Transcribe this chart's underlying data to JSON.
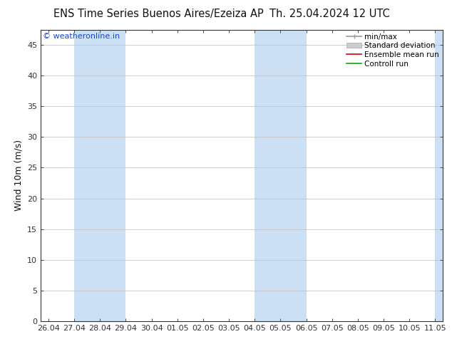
{
  "title_left": "ENS Time Series Buenos Aires/Ezeiza AP",
  "title_right": "Th. 25.04.2024 12 UTC",
  "ylabel": "Wind 10m (m/s)",
  "ylim": [
    0,
    47.5
  ],
  "yticks": [
    0,
    5,
    10,
    15,
    20,
    25,
    30,
    35,
    40,
    45
  ],
  "copyright_text": "© weatheronline.in",
  "copyright_color": "#1a44cc",
  "x_labels": [
    "26.04",
    "27.04",
    "28.04",
    "29.04",
    "30.04",
    "01.05",
    "02.05",
    "03.05",
    "04.05",
    "05.05",
    "06.05",
    "07.05",
    "08.05",
    "09.05",
    "10.05",
    "11.05"
  ],
  "x_values": [
    0,
    1,
    2,
    3,
    4,
    5,
    6,
    7,
    8,
    9,
    10,
    11,
    12,
    13,
    14,
    15
  ],
  "xlim": [
    -0.3,
    15.3
  ],
  "shade_bands": [
    {
      "xmin": 1.0,
      "xmax": 3.0
    },
    {
      "xmin": 8.0,
      "xmax": 10.0
    },
    {
      "xmin": 15.0,
      "xmax": 15.3
    }
  ],
  "shade_color": "#cce0f5",
  "bg_color": "#ffffff",
  "plot_bg_color": "#ffffff",
  "grid_color": "#bbbbbb",
  "tick_color": "#333333",
  "spine_color": "#333333",
  "title_fontsize": 10.5,
  "ylabel_fontsize": 9,
  "tick_fontsize": 8,
  "copyright_fontsize": 8,
  "legend_fontsize": 7.5
}
